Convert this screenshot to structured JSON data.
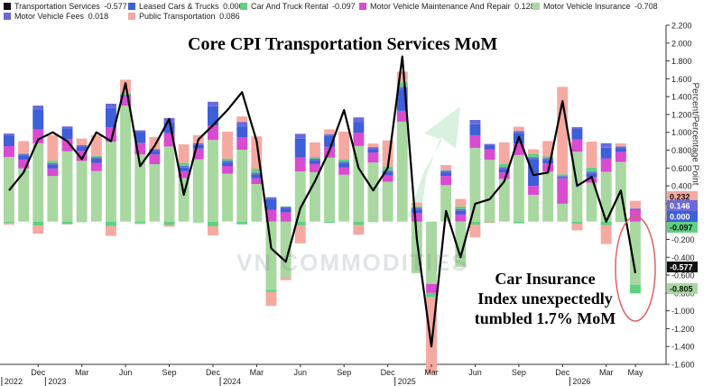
{
  "legend": [
    {
      "label": "Transportation Services",
      "value": "-0.577",
      "color": "#111111"
    },
    {
      "label": "Leased Cars & Trucks",
      "value": "0.000",
      "color": "#3d5fd9"
    },
    {
      "label": "Car And Truck Rental",
      "value": "-0.097",
      "color": "#5ed183"
    },
    {
      "label": "Motor Vehicle Maintenance And Repair",
      "value": "0.128",
      "color": "#d94bd0"
    },
    {
      "label": "Motor Vehicle Insurance",
      "value": "-0.708",
      "color": "#a8d8a0"
    },
    {
      "label": "Motor Vehicle Fees",
      "value": "0.018",
      "color": "#6a6ad8"
    },
    {
      "label": "Public Transportation",
      "value": "0.086",
      "color": "#f5a9a0"
    }
  ],
  "chart_data": {
    "type": "bar",
    "title": "Core CPI  Transportation Services MoM",
    "ylabel": "Percent/Percentage Point",
    "ylim": [
      -1.6,
      2.2
    ],
    "yticks": [
      "2.200",
      "2.000",
      "1.800",
      "1.600",
      "1.400",
      "1.200",
      "1.000",
      "0.800",
      "0.600",
      "0.400",
      "0.200",
      "0.000",
      "-0.200",
      "-0.400",
      "-0.600",
      "-0.800",
      "-1.000",
      "-1.200",
      "-1.400",
      "-1.600"
    ],
    "x_month_labels": [
      "Dec",
      "Mar",
      "Jun",
      "Sep",
      "Dec",
      "Mar",
      "Jun",
      "Sep",
      "Dec",
      "Mar",
      "Jun",
      "Sep",
      "Dec",
      "Mar",
      "May"
    ],
    "x_year_labels": [
      "2022",
      "2023",
      "2024",
      "2025",
      "2026"
    ],
    "categories": [
      "2022-10",
      "2022-11",
      "2022-12",
      "2023-01",
      "2023-02",
      "2023-03",
      "2023-04",
      "2023-05",
      "2023-06",
      "2023-07",
      "2023-08",
      "2023-09",
      "2023-10",
      "2023-11",
      "2023-12",
      "2024-01",
      "2024-02",
      "2024-03",
      "2024-04",
      "2024-05",
      "2024-06",
      "2024-07",
      "2024-08",
      "2024-09",
      "2024-10",
      "2024-11",
      "2024-12",
      "2025-01",
      "2025-02",
      "2025-03",
      "2025-04",
      "2025-05",
      "2025-06",
      "2025-07",
      "2025-08",
      "2025-09",
      "2025-10",
      "2025-11",
      "2025-12",
      "2026-01",
      "2026-02",
      "2026-03",
      "2026-04",
      "2026-05"
    ],
    "total": [
      0.35,
      0.55,
      0.92,
      1.0,
      0.9,
      0.7,
      1.0,
      0.9,
      1.55,
      0.62,
      0.85,
      1.15,
      0.3,
      0.92,
      1.08,
      1.25,
      1.45,
      0.9,
      -0.3,
      -0.45,
      0.15,
      0.45,
      0.8,
      1.25,
      0.6,
      0.35,
      0.6,
      1.85,
      -0.2,
      -1.4,
      0.12,
      -0.4,
      0.2,
      0.25,
      0.45,
      0.95,
      0.52,
      0.55,
      1.35,
      0.4,
      0.5,
      0.0,
      0.35,
      -0.577
    ],
    "latest_labels": [
      {
        "value": "0.232",
        "color": "#f5a9a0"
      },
      {
        "value": "0.146",
        "color": "#6a6ad8"
      },
      {
        "value": "0.000",
        "color": "#3d5fd9"
      },
      {
        "value": "-0.097",
        "color": "#5ed183"
      },
      {
        "value": "-0.577",
        "color": "#111111"
      },
      {
        "value": "-0.805",
        "color": "#a8d8a0"
      }
    ],
    "annotation": [
      "Car Insurance",
      "Index unexpectedly",
      "tumbled 1.7% MoM"
    ],
    "watermark": "VN COMMODITIES",
    "grid": false,
    "legend_position": "top"
  }
}
